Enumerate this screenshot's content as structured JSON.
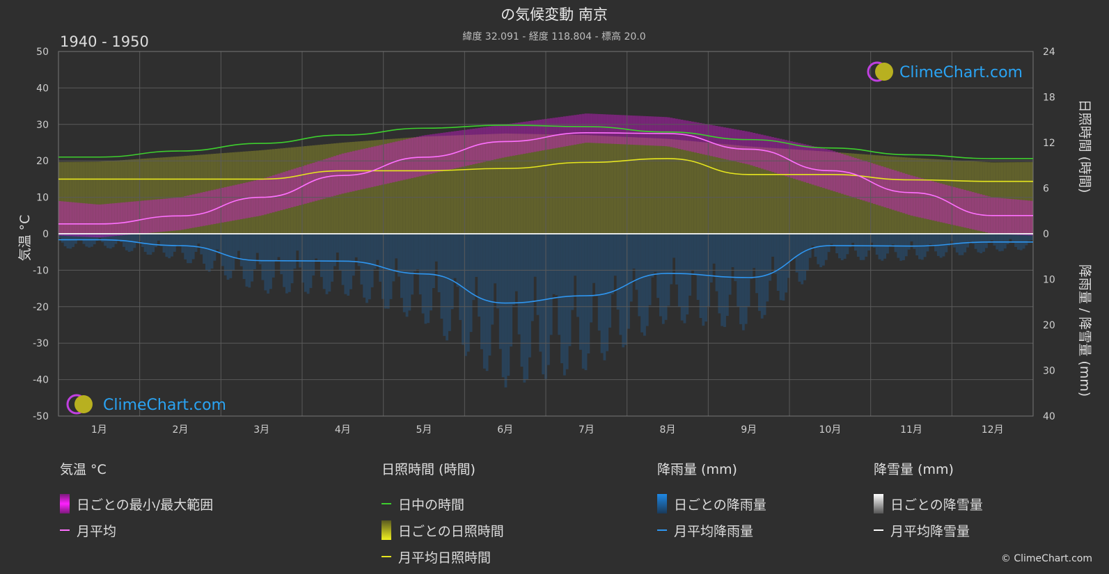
{
  "header": {
    "title": "の気候変動 南京",
    "subtitle": "緯度 32.091 - 経度 118.804 - 標高 20.0",
    "period": "1940 - 1950"
  },
  "watermark": {
    "text": "ClimeChart.com"
  },
  "copyright": "© ClimeChart.com",
  "colors": {
    "background": "#2f2f2f",
    "temp_range": "#d01ad0",
    "temp_mean": "#ff70ff",
    "daylight": "#3ecf2e",
    "sunshine_bar": "#8a8a2a",
    "sunshine_mean": "#e6e61e",
    "rain": "#1e78c8",
    "rain_mean": "#2f96f0",
    "snow": "#bbbbbb",
    "snow_mean": "#ffffff",
    "brand": "#2aa4f4"
  },
  "legend": {
    "temp": {
      "title": "気温 °C",
      "range_label": "日ごとの最小/最大範囲",
      "mean_label": "月平均"
    },
    "sun": {
      "title": "日照時間 (時間)",
      "daylight_label": "日中の時間",
      "daily_label": "日ごとの日照時間",
      "mean_label": "月平均日照時間"
    },
    "rain": {
      "title": "降雨量 (mm)",
      "daily_label": "日ごとの降雨量",
      "mean_label": "月平均降雨量"
    },
    "snow": {
      "title": "降雪量 (mm)",
      "daily_label": "日ごとの降雪量",
      "mean_label": "月平均降雪量"
    }
  },
  "chart_data": {
    "type": "line",
    "categories": [
      "1月",
      "2月",
      "3月",
      "4月",
      "5月",
      "6月",
      "7月",
      "8月",
      "9月",
      "10月",
      "11月",
      "12月"
    ],
    "axes": {
      "left": {
        "label": "気温 °C",
        "min": -50,
        "max": 50,
        "ticks": [
          50,
          40,
          30,
          20,
          10,
          0,
          -10,
          -20,
          -30,
          -40,
          -50
        ]
      },
      "right_top": {
        "label": "日照時間 (時間)",
        "min": 0,
        "max": 24,
        "ticks": [
          24,
          18,
          12,
          6,
          0
        ]
      },
      "right_bottom": {
        "label": "降雨量 / 降雪量 (mm)",
        "min": 0,
        "max": 40,
        "ticks": [
          0,
          10,
          20,
          30,
          40
        ]
      }
    },
    "grid": true,
    "series": [
      {
        "name": "日中の時間",
        "axis": "hours",
        "values": [
          10.1,
          10.9,
          11.9,
          13.0,
          13.9,
          14.3,
          14.1,
          13.4,
          12.4,
          11.3,
          10.4,
          9.9
        ]
      },
      {
        "name": "月平均日照時間",
        "axis": "hours",
        "values": [
          7.2,
          7.2,
          7.2,
          8.3,
          8.3,
          8.6,
          9.4,
          9.9,
          7.8,
          7.8,
          7.1,
          6.9
        ]
      },
      {
        "name": "月平均",
        "axis": "temp",
        "values": [
          2.7,
          4.9,
          10.0,
          16.0,
          21.0,
          25.3,
          27.7,
          27.5,
          23.2,
          17.3,
          11.3,
          5.0
        ]
      },
      {
        "name": "月平均降雨量",
        "axis": "mm",
        "values": [
          1.3,
          2.6,
          5.9,
          6.0,
          8.8,
          15.2,
          13.6,
          8.7,
          9.6,
          2.6,
          2.7,
          1.8
        ]
      },
      {
        "name": "月平均降雪量",
        "axis": "mm",
        "values": [
          0,
          0,
          0,
          0,
          0,
          0,
          0,
          0,
          0,
          0,
          0,
          0
        ]
      }
    ],
    "temp_daily_range": {
      "min": [
        -1,
        1,
        5,
        11,
        16,
        21,
        25,
        24,
        19,
        12,
        5,
        0
      ],
      "max": [
        8,
        10,
        15,
        22,
        27,
        30,
        33,
        32,
        28,
        23,
        16,
        10
      ]
    },
    "sunshine_daily_max": [
      9.5,
      10.2,
      11.0,
      12.0,
      12.8,
      13.2,
      13.0,
      12.5,
      11.5,
      10.8,
      10.0,
      9.4
    ]
  }
}
